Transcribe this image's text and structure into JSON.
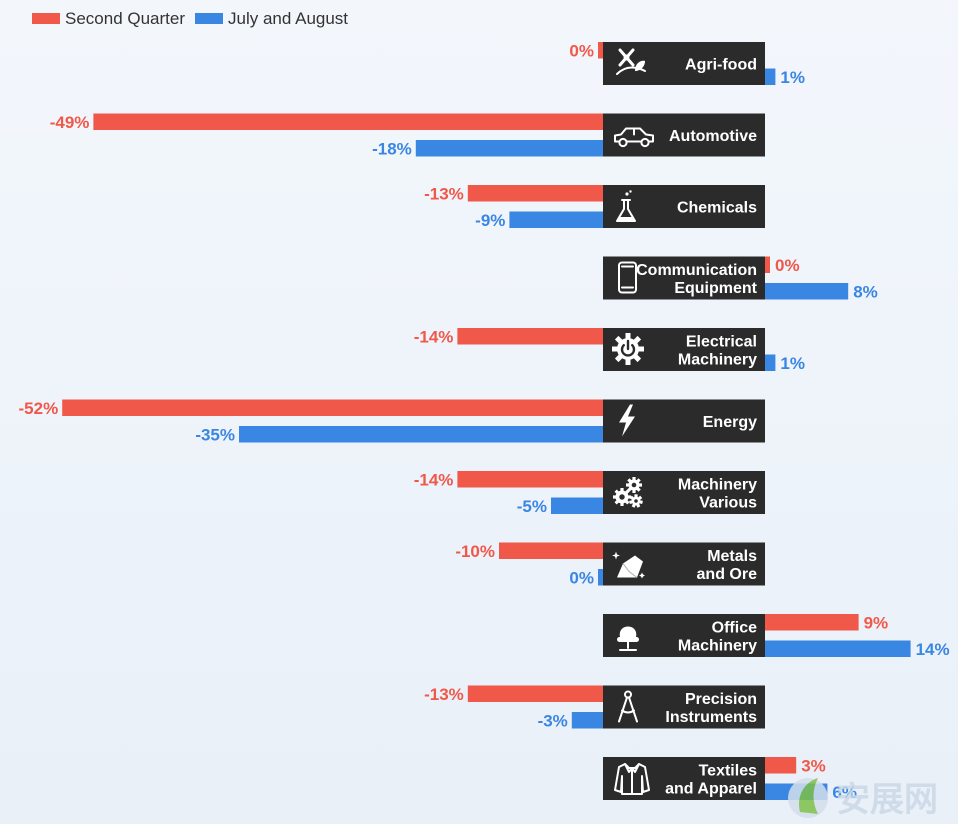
{
  "chart_data": {
    "type": "bar",
    "orientation": "horizontal",
    "title": "",
    "xlabel": "",
    "ylabel": "",
    "legend_position": "top-left",
    "grid": false,
    "unit": "%",
    "colors": {
      "Second Quarter": "#f0584a",
      "July and August": "#3a86e3"
    },
    "categories": [
      {
        "label": [
          "Agri-food"
        ],
        "icon": "agri-food-icon"
      },
      {
        "label": [
          "Automotive"
        ],
        "icon": "car-icon"
      },
      {
        "label": [
          "Chemicals"
        ],
        "icon": "flask-icon"
      },
      {
        "label": [
          "Communication",
          "Equipment"
        ],
        "icon": "smartphone-icon"
      },
      {
        "label": [
          "Electrical",
          "Machinery"
        ],
        "icon": "power-gear-icon"
      },
      {
        "label": [
          "Energy"
        ],
        "icon": "lightning-icon"
      },
      {
        "label": [
          "Machinery",
          "Various"
        ],
        "icon": "gears-icon"
      },
      {
        "label": [
          "Metals",
          "and Ore"
        ],
        "icon": "ore-icon"
      },
      {
        "label": [
          "Office",
          "Machinery"
        ],
        "icon": "office-chair-icon"
      },
      {
        "label": [
          "Precision",
          "Instruments"
        ],
        "icon": "compass-icon"
      },
      {
        "label": [
          "Textiles",
          "and Apparel"
        ],
        "icon": "jacket-icon"
      }
    ],
    "series": [
      {
        "name": "Second Quarter",
        "values": [
          0,
          -49,
          -13,
          0,
          -14,
          -52,
          -14,
          -10,
          9,
          -13,
          3
        ],
        "labels": [
          "0%",
          "-49%",
          "-13%",
          "0%",
          "-14%",
          "-52%",
          "-14%",
          "-10%",
          "9%",
          "-13%",
          "3%"
        ]
      },
      {
        "name": "July and August",
        "values": [
          1,
          -18,
          -9,
          8,
          1,
          -35,
          -5,
          0,
          14,
          -3,
          6
        ],
        "labels": [
          "1%",
          "-18%",
          "-9%",
          "8%",
          "1%",
          "-35%",
          "-5%",
          "0%",
          "14%",
          "-3%",
          "6%"
        ]
      }
    ]
  },
  "watermark": {
    "text": "安展网"
  }
}
